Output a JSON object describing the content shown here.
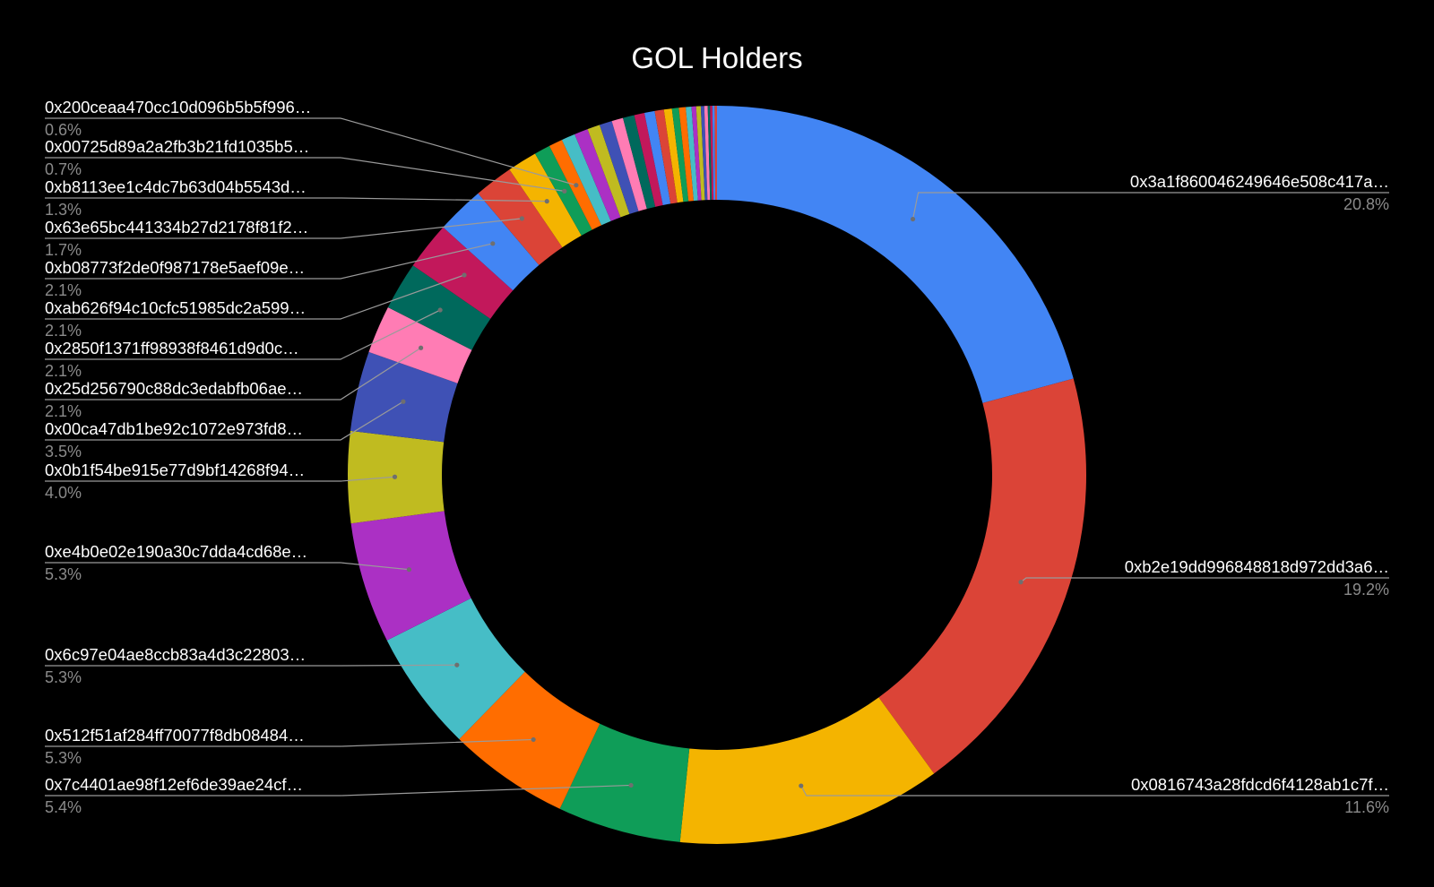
{
  "chart_data": {
    "type": "pie",
    "variant": "donut",
    "title": "GOL Holders",
    "background": "#000000",
    "slices": [
      {
        "label": "0x3a1f860046249646e508c417a…",
        "value": 20.8,
        "percent_label": "20.8%",
        "color": "#4285f4",
        "labeled": true,
        "side": "right"
      },
      {
        "label": "0xb2e19dd996848818d972dd3a6…",
        "value": 19.2,
        "percent_label": "19.2%",
        "color": "#db4437",
        "labeled": true,
        "side": "right"
      },
      {
        "label": "0x0816743a28fdcd6f4128ab1c7f…",
        "value": 11.6,
        "percent_label": "11.6%",
        "color": "#f4b400",
        "labeled": true,
        "side": "right"
      },
      {
        "label": "0x7c4401ae98f12ef6de39ae24cf…",
        "value": 5.4,
        "percent_label": "5.4%",
        "color": "#0f9d58",
        "labeled": true,
        "side": "left"
      },
      {
        "label": "0x512f51af284ff70077f8db08484…",
        "value": 5.3,
        "percent_label": "5.3%",
        "color": "#ff6d00",
        "labeled": true,
        "side": "left"
      },
      {
        "label": "0x6c97e04ae8ccb83a4d3c22803…",
        "value": 5.3,
        "percent_label": "5.3%",
        "color": "#46bdc6",
        "labeled": true,
        "side": "left"
      },
      {
        "label": "0xe4b0e02e190a30c7dda4cd68e…",
        "value": 5.3,
        "percent_label": "5.3%",
        "color": "#ab30c4",
        "labeled": true,
        "side": "left"
      },
      {
        "label": "0x0b1f54be915e77d9bf14268f94…",
        "value": 4.0,
        "percent_label": "4.0%",
        "color": "#c0bb20",
        "labeled": true,
        "side": "left"
      },
      {
        "label": "0x00ca47db1be92c1072e973fd8…",
        "value": 3.5,
        "percent_label": "3.5%",
        "color": "#3f51b5",
        "labeled": true,
        "side": "left"
      },
      {
        "label": "0x25d256790c88dc3edabfb06ae…",
        "value": 2.1,
        "percent_label": "2.1%",
        "color": "#ff7cb4",
        "labeled": true,
        "side": "left"
      },
      {
        "label": "0x2850f1371ff98938f8461d9d0c…",
        "value": 2.1,
        "percent_label": "2.1%",
        "color": "#00695c",
        "labeled": true,
        "side": "left"
      },
      {
        "label": "0xab626f94c10cfc51985dc2a599…",
        "value": 2.1,
        "percent_label": "2.1%",
        "color": "#c2185b",
        "labeled": true,
        "side": "left"
      },
      {
        "label": "0xb08773f2de0f987178e5aef09e…",
        "value": 2.1,
        "percent_label": "2.1%",
        "color": "#4285f4",
        "labeled": true,
        "side": "left"
      },
      {
        "label": "0x63e65bc441334b27d2178f81f2…",
        "value": 1.7,
        "percent_label": "1.7%",
        "color": "#db4437",
        "labeled": true,
        "side": "left"
      },
      {
        "label": "0xb8113ee1c4dc7b63d04b5543d…",
        "value": 1.3,
        "percent_label": "1.3%",
        "color": "#f4b400",
        "labeled": true,
        "side": "left"
      },
      {
        "label": "0x00725d89a2a2fb3b21fd1035b5…",
        "value": 0.7,
        "percent_label": "0.7%",
        "color": "#0f9d58",
        "labeled": true,
        "side": "left"
      },
      {
        "label": "0x200ceaa470cc10d096b5b5f996…",
        "value": 0.6,
        "percent_label": "0.6%",
        "color": "#ff6d00",
        "labeled": true,
        "side": "left"
      },
      {
        "label": "",
        "value": 0.6,
        "color": "#46bdc6",
        "labeled": false
      },
      {
        "label": "",
        "value": 0.6,
        "color": "#ab30c4",
        "labeled": false
      },
      {
        "label": "",
        "value": 0.55,
        "color": "#c0bb20",
        "labeled": false
      },
      {
        "label": "",
        "value": 0.55,
        "color": "#3f51b5",
        "labeled": false
      },
      {
        "label": "",
        "value": 0.5,
        "color": "#ff7cb4",
        "labeled": false
      },
      {
        "label": "",
        "value": 0.5,
        "color": "#00695c",
        "labeled": false
      },
      {
        "label": "",
        "value": 0.45,
        "color": "#c2185b",
        "labeled": false
      },
      {
        "label": "",
        "value": 0.45,
        "color": "#4285f4",
        "labeled": false
      },
      {
        "label": "",
        "value": 0.4,
        "color": "#db4437",
        "labeled": false
      },
      {
        "label": "",
        "value": 0.35,
        "color": "#f4b400",
        "labeled": false
      },
      {
        "label": "",
        "value": 0.3,
        "color": "#0f9d58",
        "labeled": false
      },
      {
        "label": "",
        "value": 0.3,
        "color": "#ff6d00",
        "labeled": false
      },
      {
        "label": "",
        "value": 0.25,
        "color": "#46bdc6",
        "labeled": false
      },
      {
        "label": "",
        "value": 0.2,
        "color": "#ab30c4",
        "labeled": false
      },
      {
        "label": "",
        "value": 0.2,
        "color": "#c0bb20",
        "labeled": false
      },
      {
        "label": "",
        "value": 0.15,
        "color": "#3f51b5",
        "labeled": false
      },
      {
        "label": "",
        "value": 0.15,
        "color": "#ff7cb4",
        "labeled": false
      },
      {
        "label": "",
        "value": 0.1,
        "color": "#00695c",
        "labeled": false
      },
      {
        "label": "",
        "value": 0.1,
        "color": "#c2185b",
        "labeled": false
      },
      {
        "label": "",
        "value": 0.1,
        "color": "#4285f4",
        "labeled": false
      },
      {
        "label": "",
        "value": 0.1,
        "color": "#db4437",
        "labeled": false
      }
    ]
  }
}
